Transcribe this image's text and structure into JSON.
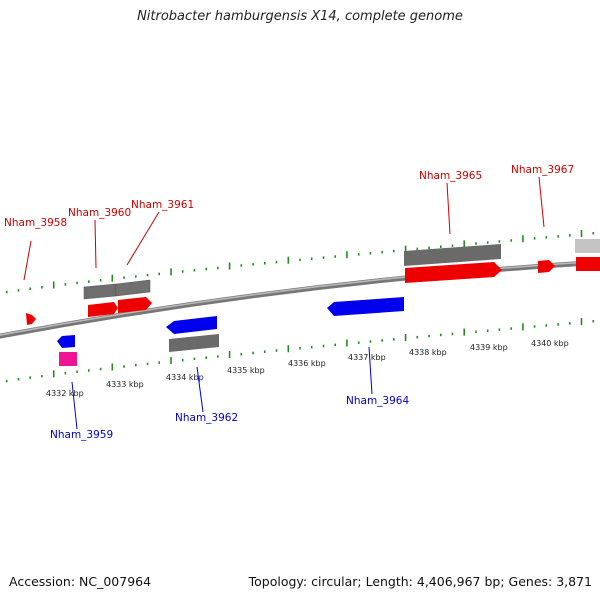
{
  "header": {
    "title": "Nitrobacter hamburgensis X14, complete genome"
  },
  "footer": {
    "accession": "Accession: NC_007964",
    "topology": "Topology: circular; Length: 4,406,967 bp; Genes: 3,871"
  },
  "colors": {
    "forward_gene": "#ff0000",
    "reverse_gene": "#0000ff",
    "rna_gene": "#ff1493",
    "cds_bar": "#707070",
    "backbone": "#888888",
    "tick": "#228b22",
    "forward_label": "#cc0000",
    "reverse_label": "#0000cc"
  },
  "scale": {
    "tick_labels": [
      "4332 kbp",
      "4333 kbp",
      "4334 kbp",
      "4335 kbp",
      "4336 kbp",
      "4337 kbp",
      "4338 kbp",
      "4339 kbp",
      "4340 kbp"
    ]
  },
  "genes": {
    "forward": [
      "Nham_3958",
      "Nham_3960",
      "Nham_3961",
      "Nham_3965",
      "Nham_3967"
    ],
    "reverse": [
      "Nham_3959",
      "Nham_3962",
      "Nham_3964"
    ]
  }
}
